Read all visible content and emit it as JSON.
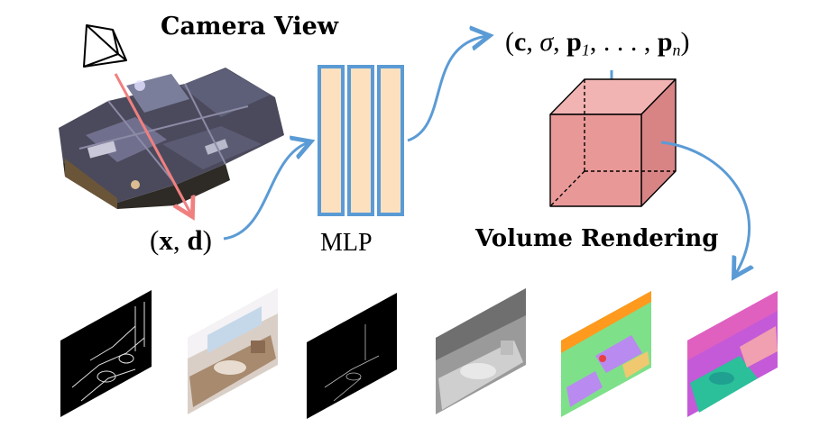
{
  "labels": {
    "camera_view": "Camera View",
    "volume_rendering": "Volume Rendering",
    "mlp": "MLP"
  },
  "formulas": {
    "input": {
      "open": "(",
      "x": "x",
      "comma": ", ",
      "d": "d",
      "close": ")"
    },
    "output": {
      "open": "(",
      "c": "c",
      "sep1": ", ",
      "sigma": "σ",
      "sep2": ", ",
      "p": "p",
      "p1_sub": "1",
      "sep3": ", . . . , ",
      "pn_sub": "n",
      "close": ")"
    }
  },
  "colors": {
    "arrow_blue": "#5b9bd5",
    "ray_red": "#f08080",
    "mlp_fill": "#fde1bf",
    "mlp_border": "#5b9bd5",
    "cube_front": "#e99898",
    "cube_top": "#f2b3b3",
    "cube_side": "#d88484"
  },
  "output_panels": [
    {
      "kind": "edge-map",
      "bg": "#000000"
    },
    {
      "kind": "rgb-render",
      "bg": "#d9cfc7"
    },
    {
      "kind": "sparse-edges",
      "bg": "#000000"
    },
    {
      "kind": "depth",
      "bg": "#9a9a9a"
    },
    {
      "kind": "semantic",
      "bg": "#7fe08a"
    },
    {
      "kind": "normals",
      "bg": "#c45ad8"
    }
  ]
}
